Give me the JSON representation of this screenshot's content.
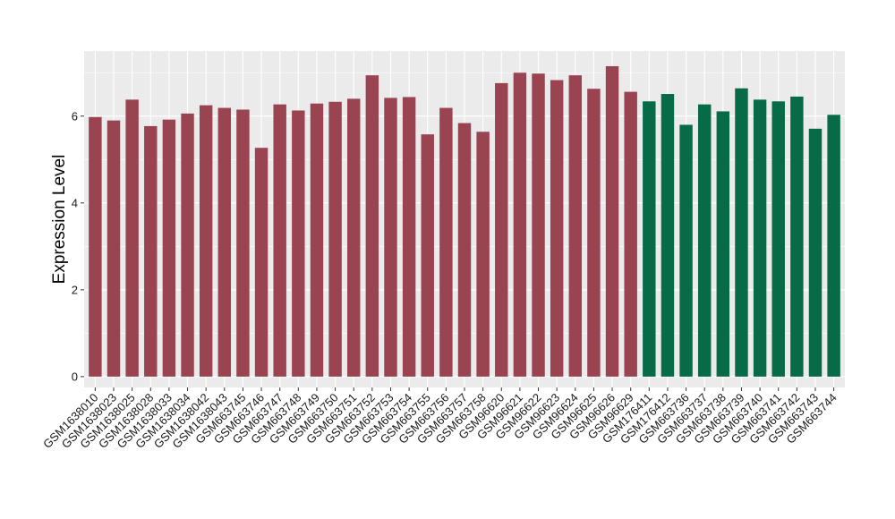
{
  "chart_data": {
    "type": "bar",
    "title": "",
    "xlabel": "",
    "ylabel": "Expression Level",
    "ylim": [
      -0.25,
      7.5
    ],
    "y_ticks": [
      0,
      2,
      4,
      6
    ],
    "grid": true,
    "legend": "none",
    "colors": {
      "group_1": "#9a4452",
      "group_2": "#066b46",
      "panel_bg": "#ebebeb",
      "grid": "#ffffff"
    },
    "categories": [
      "GSM1638010",
      "GSM1638023",
      "GSM1638025",
      "GSM1638028",
      "GSM1638033",
      "GSM1638034",
      "GSM1638042",
      "GSM1638043",
      "GSM663745",
      "GSM663746",
      "GSM663747",
      "GSM663748",
      "GSM663749",
      "GSM663750",
      "GSM663751",
      "GSM663752",
      "GSM663753",
      "GSM663754",
      "GSM663755",
      "GSM663756",
      "GSM663757",
      "GSM663758",
      "GSM96620",
      "GSM96621",
      "GSM96622",
      "GSM96623",
      "GSM96624",
      "GSM96625",
      "GSM96626",
      "GSM96629",
      "GSM176411",
      "GSM176412",
      "GSM663736",
      "GSM663737",
      "GSM663738",
      "GSM663739",
      "GSM663740",
      "GSM663741",
      "GSM663742",
      "GSM663743",
      "GSM663744"
    ],
    "values": [
      5.98,
      5.9,
      6.38,
      5.77,
      5.92,
      6.06,
      6.25,
      6.19,
      6.15,
      5.27,
      6.27,
      6.13,
      6.29,
      6.33,
      6.4,
      6.94,
      6.42,
      6.44,
      5.58,
      6.19,
      5.84,
      5.64,
      6.76,
      7.0,
      6.98,
      6.83,
      6.94,
      6.63,
      7.15,
      6.56,
      6.34,
      6.51,
      5.8,
      6.27,
      6.11,
      6.64,
      6.38,
      6.34,
      6.45,
      5.71,
      6.03
    ],
    "groups": [
      1,
      1,
      1,
      1,
      1,
      1,
      1,
      1,
      1,
      1,
      1,
      1,
      1,
      1,
      1,
      1,
      1,
      1,
      1,
      1,
      1,
      1,
      1,
      1,
      1,
      1,
      1,
      1,
      1,
      1,
      2,
      2,
      2,
      2,
      2,
      2,
      2,
      2,
      2,
      2,
      2
    ]
  }
}
